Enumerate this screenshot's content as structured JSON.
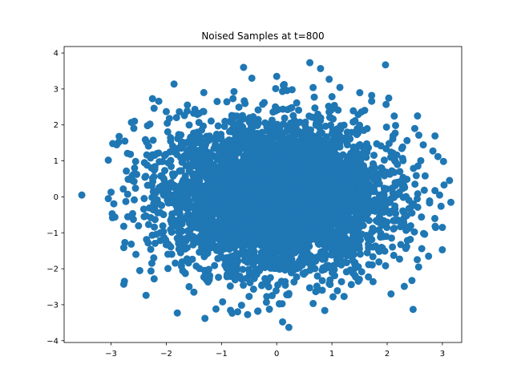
{
  "chart_data": {
    "type": "scatter",
    "title": "Noised Samples at t=800",
    "xlabel": "",
    "ylabel": "",
    "xlim": [
      -3.85,
      3.35
    ],
    "ylim": [
      -4.05,
      4.18
    ],
    "xticks": [
      -3,
      -2,
      -1,
      0,
      1,
      2,
      3
    ],
    "yticks": [
      -4,
      -3,
      -2,
      -1,
      0,
      1,
      2,
      3,
      4
    ],
    "grid": false,
    "legend": "none",
    "color": "#1f77b4",
    "marker": "circle",
    "n_points_approx": 5000,
    "outlier_points": [
      {
        "x": -3.53,
        "y": 0.05
      },
      {
        "x": -3.05,
        "y": -0.05
      },
      {
        "x": -3.0,
        "y": 0.13
      },
      {
        "x": -2.98,
        "y": -0.47
      },
      {
        "x": -3.05,
        "y": 1.02
      },
      {
        "x": -2.97,
        "y": 1.48
      },
      {
        "x": -2.77,
        "y": -0.82
      },
      {
        "x": -2.75,
        "y": -1.27
      },
      {
        "x": -2.77,
        "y": -2.43
      },
      {
        "x": -2.63,
        "y": 2.07
      },
      {
        "x": -2.62,
        "y": 0.58
      },
      {
        "x": -2.55,
        "y": -1.6
      },
      {
        "x": -2.48,
        "y": -2.05
      },
      {
        "x": -2.25,
        "y": 2.73
      },
      {
        "x": -2.22,
        "y": -2.28
      },
      {
        "x": -2.0,
        "y": 2.37
      },
      {
        "x": -1.8,
        "y": -3.23
      },
      {
        "x": -1.3,
        "y": -3.38
      },
      {
        "x": -1.32,
        "y": 2.9
      },
      {
        "x": -0.6,
        "y": 3.6
      },
      {
        "x": -0.45,
        "y": 3.3
      },
      {
        "x": 0.0,
        "y": 3.35
      },
      {
        "x": 0.12,
        "y": 3.1
      },
      {
        "x": 0.6,
        "y": 3.73
      },
      {
        "x": 0.95,
        "y": 3.27
      },
      {
        "x": 1.97,
        "y": 3.67
      },
      {
        "x": 1.72,
        "y": 2.82
      },
      {
        "x": 2.55,
        "y": 2.25
      },
      {
        "x": 2.92,
        "y": 1.12
      },
      {
        "x": 3.03,
        "y": 0.33
      },
      {
        "x": 2.95,
        "y": 0.05
      },
      {
        "x": 3.0,
        "y": -0.85
      },
      {
        "x": 2.87,
        "y": -0.82
      },
      {
        "x": 2.75,
        "y": -1.65
      },
      {
        "x": 2.47,
        "y": -3.13
      },
      {
        "x": 2.07,
        "y": -2.7
      },
      {
        "x": 1.22,
        "y": -2.77
      },
      {
        "x": 1.02,
        "y": -2.78
      },
      {
        "x": 0.22,
        "y": -3.63
      },
      {
        "x": 0.05,
        "y": -2.97
      },
      {
        "x": -0.5,
        "y": -2.77
      },
      {
        "x": -0.98,
        "y": -2.92
      },
      {
        "x": -1.1,
        "y": -3.12
      },
      {
        "x": -1.5,
        "y": -2.65
      },
      {
        "x": 2.57,
        "y": -1.95
      },
      {
        "x": 2.5,
        "y": 1.9
      },
      {
        "x": -2.75,
        "y": 1.55
      },
      {
        "x": -2.4,
        "y": -0.55
      }
    ],
    "core_distribution": {
      "mean_x": 0.0,
      "mean_y": 0.0,
      "sd_x": 1.0,
      "sd_y": 1.0,
      "seed": 800
    }
  }
}
